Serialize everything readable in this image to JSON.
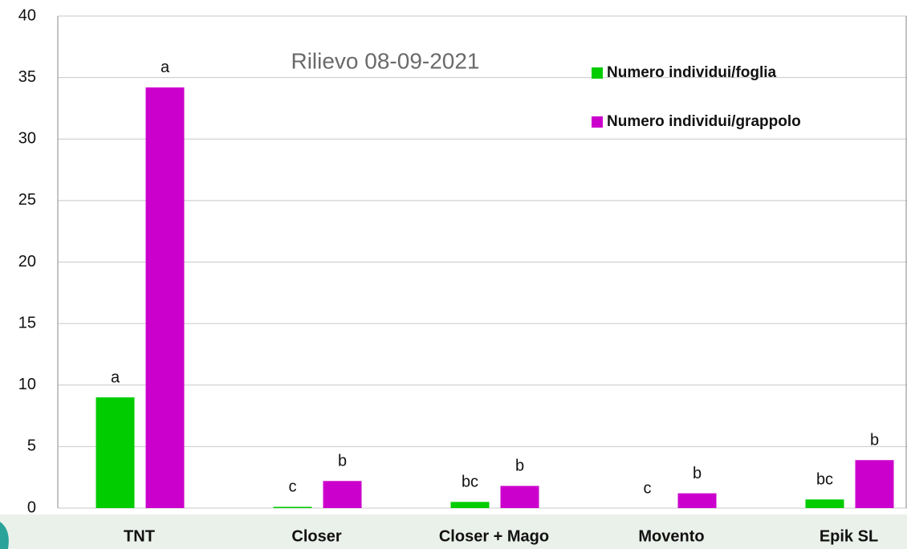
{
  "chart_data": {
    "type": "bar",
    "title": "Rilievo 08-09-2021",
    "categories": [
      "TNT",
      "Closer",
      "Closer + Mago",
      "Movento",
      "Epik SL"
    ],
    "series": [
      {
        "name": "Numero individui/foglia",
        "color": "#00cc00",
        "values": [
          9.0,
          0.1,
          0.5,
          0,
          0.7
        ],
        "letters": [
          "a",
          "c",
          "bc",
          "c",
          "bc"
        ]
      },
      {
        "name": "Numero individui/grappolo",
        "color": "#cc00cc",
        "values": [
          34.2,
          2.2,
          1.8,
          1.2,
          3.9
        ],
        "letters": [
          "a",
          "b",
          "b",
          "b",
          "b"
        ]
      }
    ],
    "ylim": [
      0,
      40
    ],
    "yticks": [
      0,
      5,
      10,
      15,
      20,
      25,
      30,
      35,
      40
    ],
    "grid": true,
    "legend": "top-right"
  }
}
